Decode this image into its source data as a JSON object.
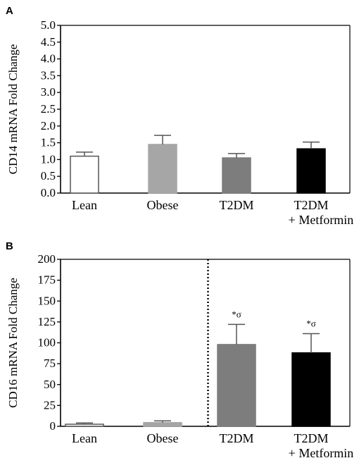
{
  "chart_data": [
    {
      "panel": "A",
      "type": "bar",
      "ylabel": "CD14 mRNA Fold Change",
      "categories": [
        [
          "Lean"
        ],
        [
          "Obese"
        ],
        [
          "T2DM"
        ],
        [
          "T2DM",
          "+ Metformin"
        ]
      ],
      "values": [
        1.1,
        1.45,
        1.05,
        1.32
      ],
      "errors": [
        0.12,
        0.27,
        0.13,
        0.2
      ],
      "colors": [
        "#ffffff",
        "#a6a6a6",
        "#7d7d7d",
        "#000000"
      ],
      "ylim": [
        0,
        5
      ],
      "yticks": [
        "0.0",
        "0.5",
        "1.0",
        "1.5",
        "2.0",
        "2.5",
        "3.0",
        "3.5",
        "4.0",
        "4.5",
        "5.0"
      ],
      "annotations": [
        "",
        "",
        "",
        ""
      ],
      "divider_after_index": null
    },
    {
      "panel": "B",
      "type": "bar",
      "ylabel": "CD16 mRNA Fold Change",
      "categories": [
        [
          "Lean"
        ],
        [
          "Obese"
        ],
        [
          "T2DM"
        ],
        [
          "T2DM",
          "+ Metformin"
        ]
      ],
      "values": [
        2.5,
        4.5,
        98,
        88
      ],
      "errors": [
        1.5,
        2.0,
        24,
        23
      ],
      "colors": [
        "#ffffff",
        "#a6a6a6",
        "#7d7d7d",
        "#000000"
      ],
      "ylim": [
        0,
        200
      ],
      "yticks": [
        "0",
        "25",
        "50",
        "75",
        "100",
        "125",
        "150",
        "175",
        "200"
      ],
      "annotations": [
        "",
        "",
        "*σ",
        "*σ"
      ],
      "divider_after_index": 1
    }
  ]
}
